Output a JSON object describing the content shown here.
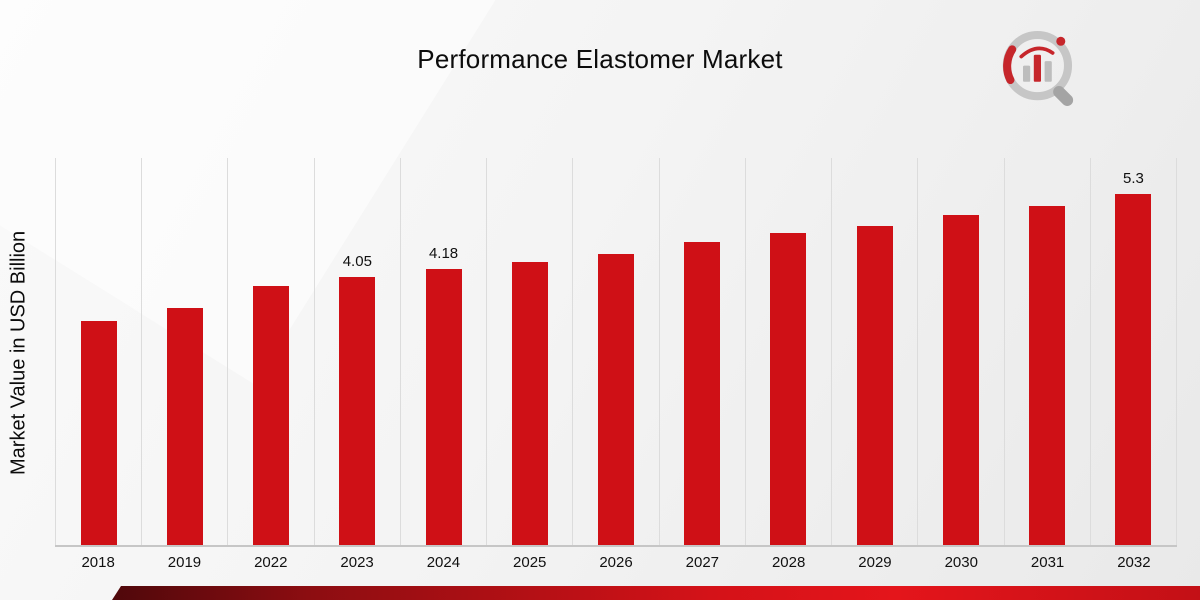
{
  "title": "Performance Elastomer Market",
  "ylabel": "Market Value in USD Billion",
  "logo_name": "market-research-chart-magnifier-logo",
  "chart_data": {
    "type": "bar",
    "title": "Performance Elastomer Market",
    "xlabel": "",
    "ylabel": "Market Value in USD Billion",
    "categories": [
      "2018",
      "2019",
      "2022",
      "2023",
      "2024",
      "2025",
      "2026",
      "2027",
      "2028",
      "2029",
      "2030",
      "2031",
      "2032"
    ],
    "values": [
      3.39,
      3.58,
      3.92,
      4.05,
      4.18,
      4.28,
      4.4,
      4.58,
      4.71,
      4.83,
      4.99,
      5.13,
      5.3
    ],
    "bar_labels": [
      "",
      "",
      "",
      "4.05",
      "4.18",
      "",
      "",
      "",
      "",
      "",
      "",
      "",
      "5.3"
    ],
    "ylim": [
      0,
      5.85
    ],
    "bar_color": "#cf1016",
    "gridlines": "vertical-only",
    "legend": "none",
    "units": "USD Billion"
  }
}
